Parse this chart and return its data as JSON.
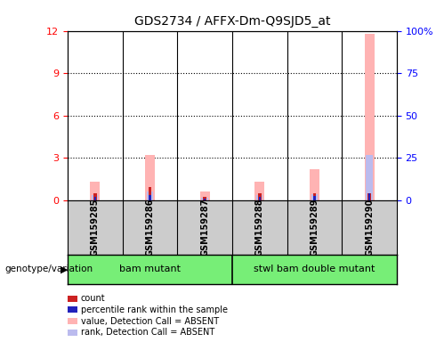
{
  "title": "GDS2734 / AFFX-Dm-Q9SJD5_at",
  "samples": [
    "GSM159285",
    "GSM159286",
    "GSM159287",
    "GSM159288",
    "GSM159289",
    "GSM159290"
  ],
  "label_group1": "bam mutant",
  "label_group2": "stwl bam double mutant",
  "ylim_left": [
    0,
    12
  ],
  "ylim_right": [
    0,
    100
  ],
  "yticks_left": [
    0,
    3,
    6,
    9,
    12
  ],
  "yticks_right": [
    0,
    25,
    50,
    75,
    100
  ],
  "right_tick_labels": [
    "0",
    "25",
    "50",
    "75",
    "100%"
  ],
  "pink_bars": [
    1.3,
    3.2,
    0.6,
    1.3,
    2.2,
    11.8
  ],
  "blue_bars": [
    0.35,
    0.6,
    0.15,
    0.35,
    0.45,
    3.2
  ],
  "red_bars": [
    0.5,
    0.9,
    0.25,
    0.5,
    0.5,
    0.5
  ],
  "dark_blue_bars": [
    0.25,
    0.35,
    0.1,
    0.25,
    0.3,
    0.5
  ],
  "pink_color": "#FFB3B3",
  "blue_color": "#BBBBEE",
  "red_color": "#CC2222",
  "dark_blue_color": "#2222BB",
  "bg_color": "#FFFFFF",
  "group_bg": "#77EE77",
  "sample_bg": "#CCCCCC",
  "legend_items": [
    {
      "label": "count",
      "color": "#CC2222"
    },
    {
      "label": "percentile rank within the sample",
      "color": "#2222BB"
    },
    {
      "label": "value, Detection Call = ABSENT",
      "color": "#FFB3B3"
    },
    {
      "label": "rank, Detection Call = ABSENT",
      "color": "#BBBBEE"
    }
  ]
}
